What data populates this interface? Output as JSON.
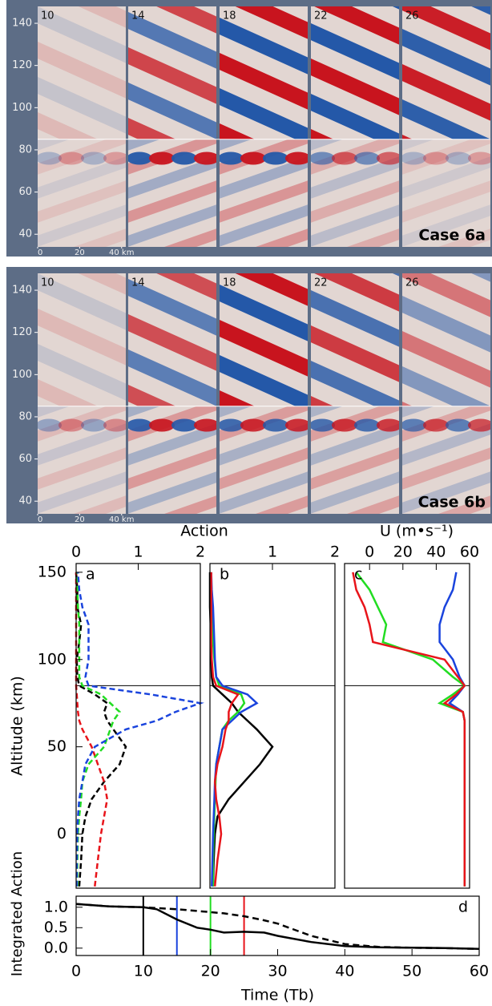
{
  "chart_data": [
    {
      "type": "heatmap",
      "title": "Case 6a",
      "subpanel_labels": [
        "10",
        "14",
        "18",
        "22",
        "26"
      ],
      "ylim": [
        34,
        148
      ],
      "yticks": [
        40,
        60,
        80,
        100,
        120,
        140
      ],
      "xlim": [
        0,
        42
      ],
      "xticks": [
        0,
        20,
        {
          "value": 40,
          "label": "40 km"
        }
      ],
      "hline": 85
    },
    {
      "type": "heatmap",
      "title": "Case 6b",
      "subpanel_labels": [
        "10",
        "14",
        "18",
        "22",
        "26"
      ],
      "ylim": [
        34,
        148
      ],
      "yticks": [
        40,
        60,
        80,
        100,
        120,
        140
      ],
      "xlim": [
        0,
        42
      ],
      "xticks": [
        0,
        20,
        {
          "value": 40,
          "label": "40 km"
        }
      ],
      "hline": 85
    },
    {
      "type": "profile",
      "letter": "a",
      "xlabel": "Action",
      "ylabel": "Altitude (km)",
      "xlim": [
        0,
        2
      ],
      "xticks": [
        0,
        1,
        2
      ],
      "ylim": [
        -31,
        155
      ],
      "yticks": [
        0,
        50,
        100,
        150
      ],
      "hline": 85,
      "y": [
        -30,
        -15,
        0,
        10,
        20,
        30,
        40,
        50,
        60,
        65,
        70,
        75,
        80,
        85,
        90,
        100,
        110,
        120,
        130,
        140,
        150
      ],
      "series": [
        {
          "color": "#000000",
          "dashed": true,
          "values": [
            0.05,
            0.08,
            0.1,
            0.15,
            0.25,
            0.45,
            0.7,
            0.8,
            0.6,
            0.5,
            0.45,
            0.5,
            0.3,
            0.05,
            0.02,
            0.01,
            0.05,
            0.08,
            0.02,
            0.02,
            0.0
          ]
        },
        {
          "color": "#e8141a",
          "dashed": true,
          "values": [
            0.3,
            0.35,
            0.4,
            0.45,
            0.5,
            0.45,
            0.35,
            0.25,
            0.1,
            0.05,
            0.03,
            0.02,
            0.01,
            0.0,
            0.0,
            0.0,
            0.0,
            0.0,
            0.0,
            0.0,
            0.0
          ]
        },
        {
          "color": "#22dd22",
          "dashed": true,
          "values": [
            0.02,
            0.02,
            0.03,
            0.05,
            0.08,
            0.1,
            0.2,
            0.45,
            0.55,
            0.6,
            0.7,
            0.55,
            0.4,
            0.1,
            0.05,
            0.05,
            0.05,
            0.05,
            0.03,
            0.02,
            0.01
          ]
        },
        {
          "color": "#1a44dd",
          "dashed": true,
          "values": [
            0.01,
            0.01,
            0.02,
            0.03,
            0.05,
            0.1,
            0.15,
            0.3,
            0.8,
            1.3,
            1.6,
            2.0,
            1.2,
            0.2,
            0.15,
            0.2,
            0.2,
            0.2,
            0.1,
            0.05,
            0.03
          ]
        }
      ]
    },
    {
      "type": "profile",
      "letter": "b",
      "xlim": [
        0,
        2
      ],
      "xticks": [
        1,
        2
      ],
      "ylim": [
        -31,
        155
      ],
      "hline": 85,
      "y": [
        -30,
        -15,
        0,
        10,
        20,
        30,
        40,
        50,
        60,
        65,
        70,
        75,
        80,
        85,
        90,
        100,
        110,
        120,
        130,
        140,
        150
      ],
      "series": [
        {
          "color": "#000000",
          "values": [
            0.05,
            0.06,
            0.08,
            0.12,
            0.3,
            0.55,
            0.8,
            1.0,
            0.75,
            0.6,
            0.45,
            0.35,
            0.2,
            0.05,
            0.03,
            0.02,
            0.01,
            0.01,
            0.0,
            0.0,
            0.0
          ]
        },
        {
          "color": "#22dd22",
          "values": [
            0.05,
            0.05,
            0.06,
            0.07,
            0.08,
            0.09,
            0.1,
            0.15,
            0.2,
            0.3,
            0.45,
            0.55,
            0.5,
            0.15,
            0.1,
            0.07,
            0.05,
            0.05,
            0.03,
            0.02,
            0.02
          ]
        },
        {
          "color": "#1a44dd",
          "values": [
            0.03,
            0.04,
            0.05,
            0.06,
            0.07,
            0.08,
            0.1,
            0.15,
            0.2,
            0.35,
            0.5,
            0.75,
            0.6,
            0.2,
            0.1,
            0.08,
            0.07,
            0.06,
            0.05,
            0.03,
            0.02
          ]
        },
        {
          "color": "#e8141a",
          "values": [
            0.08,
            0.12,
            0.18,
            0.15,
            0.1,
            0.08,
            0.12,
            0.2,
            0.25,
            0.3,
            0.3,
            0.35,
            0.45,
            0.1,
            0.05,
            0.03,
            0.02,
            0.02,
            0.02,
            0.02,
            0.02
          ]
        }
      ]
    },
    {
      "type": "profile",
      "letter": "c",
      "xlabel": "U (m•s⁻¹)",
      "xlim": [
        -15,
        60
      ],
      "xticks": [
        0,
        20,
        40,
        60
      ],
      "ylim": [
        -31,
        155
      ],
      "hline": 85,
      "y": [
        -30,
        -15,
        0,
        10,
        20,
        30,
        40,
        50,
        60,
        65,
        70,
        75,
        80,
        85,
        90,
        100,
        110,
        120,
        130,
        140,
        150
      ],
      "series": [
        {
          "color": "#1a44dd",
          "values": [
            57,
            57,
            57,
            57,
            57,
            57,
            57,
            57,
            57,
            57,
            56,
            48,
            53,
            57,
            54,
            50,
            42,
            42,
            45,
            50,
            52
          ]
        },
        {
          "color": "#22dd22",
          "values": [
            57,
            57,
            57,
            57,
            57,
            57,
            57,
            57,
            57,
            57,
            56,
            42,
            50,
            57,
            50,
            38,
            8,
            10,
            5,
            0,
            -8
          ]
        },
        {
          "color": "#e8141a",
          "values": [
            57,
            57,
            57,
            57,
            57,
            57,
            57,
            57,
            57,
            57,
            56,
            45,
            52,
            57,
            53,
            45,
            2,
            0,
            -3,
            -8,
            -10
          ]
        }
      ]
    },
    {
      "type": "line",
      "letter": "d",
      "xlabel": "Time (Tb)",
      "ylabel": "Integrated Action",
      "xlim": [
        0,
        60
      ],
      "xticks": [
        0,
        10,
        20,
        30,
        40,
        50,
        60
      ],
      "ylim": [
        -0.18,
        1.27
      ],
      "yticks": [
        {
          "value": 0,
          "label": "0.0"
        },
        {
          "value": 0.5,
          "label": "0.5"
        },
        {
          "value": 1,
          "label": "1.0"
        }
      ],
      "x": [
        0,
        5,
        10,
        12,
        15,
        18,
        20,
        22,
        25,
        28,
        30,
        35,
        40,
        45,
        50,
        55,
        60
      ],
      "series": [
        {
          "color": "#000000",
          "values": [
            1.08,
            1.02,
            1.0,
            0.95,
            0.7,
            0.5,
            0.45,
            0.38,
            0.4,
            0.38,
            0.3,
            0.15,
            0.05,
            0.02,
            0.01,
            0.0,
            -0.02
          ]
        },
        {
          "color": "#000000",
          "dashed": true,
          "values": [
            1.08,
            1.02,
            1.0,
            0.98,
            0.95,
            0.91,
            0.88,
            0.85,
            0.78,
            0.68,
            0.6,
            0.3,
            0.1,
            0.03,
            0.01,
            0.0,
            -0.02
          ]
        }
      ],
      "vlines": [
        {
          "value": 10,
          "color": "#000000"
        },
        {
          "value": 15,
          "color": "#1a44dd"
        },
        {
          "value": 20,
          "color": "#22dd22"
        },
        {
          "value": 25,
          "color": "#e8141a"
        }
      ]
    }
  ]
}
